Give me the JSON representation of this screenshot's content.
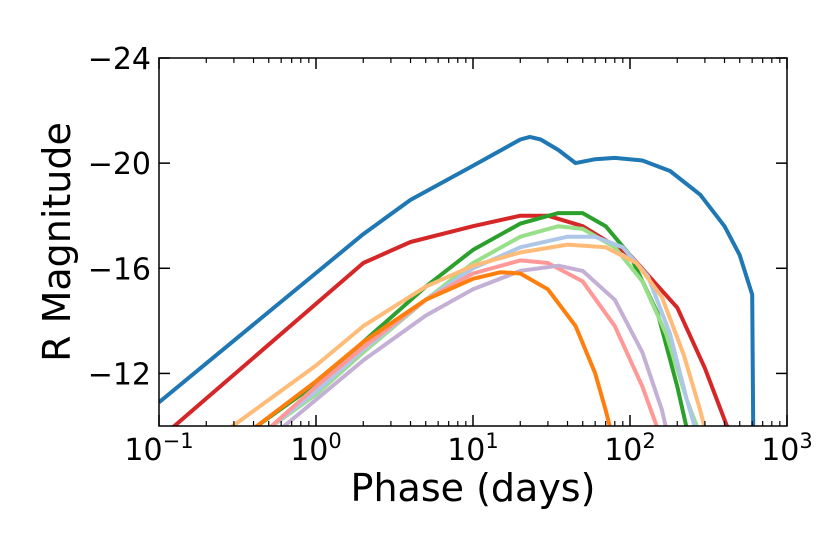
{
  "chart_data": {
    "type": "line",
    "title": "",
    "xlabel": "Phase (days)",
    "ylabel": "R Magnitude",
    "xscale": "log",
    "xlim": [
      0.1,
      1000
    ],
    "ylim": [
      -10,
      -24
    ],
    "y_inverted": true,
    "grid": false,
    "legend": "none",
    "x_ticks": [
      {
        "value": 0.1,
        "base": "10",
        "exp": "−1"
      },
      {
        "value": 1,
        "base": "10",
        "exp": "0"
      },
      {
        "value": 10,
        "base": "10",
        "exp": "1"
      },
      {
        "value": 100,
        "base": "10",
        "exp": "2"
      },
      {
        "value": 1000,
        "base": "10",
        "exp": "3"
      }
    ],
    "y_ticks": [
      {
        "value": -24,
        "label": "−24"
      },
      {
        "value": -20,
        "label": "−20"
      },
      {
        "value": -16,
        "label": "−16"
      },
      {
        "value": -12,
        "label": "−12"
      }
    ],
    "series": [
      {
        "name": "blue",
        "color": "#1f77b4",
        "points": [
          [
            0.1,
            -10.9
          ],
          [
            2,
            -17.3
          ],
          [
            4,
            -18.6
          ],
          [
            10,
            -19.9
          ],
          [
            20,
            -20.9
          ],
          [
            23,
            -21.0
          ],
          [
            27,
            -20.9
          ],
          [
            35,
            -20.5
          ],
          [
            45,
            -20.0
          ],
          [
            60,
            -20.15
          ],
          [
            80,
            -20.2
          ],
          [
            120,
            -20.1
          ],
          [
            180,
            -19.7
          ],
          [
            280,
            -18.8
          ],
          [
            400,
            -17.6
          ],
          [
            500,
            -16.5
          ],
          [
            600,
            -15.0
          ],
          [
            610,
            -9.5
          ]
        ]
      },
      {
        "name": "red",
        "color": "#d62728",
        "points": [
          [
            0.12,
            -9.9
          ],
          [
            2,
            -16.2
          ],
          [
            4,
            -17.0
          ],
          [
            10,
            -17.6
          ],
          [
            20,
            -18.0
          ],
          [
            30,
            -18.0
          ],
          [
            50,
            -17.6
          ],
          [
            100,
            -16.5
          ],
          [
            200,
            -14.5
          ],
          [
            300,
            -12.2
          ],
          [
            420,
            -9.9
          ]
        ]
      },
      {
        "name": "green",
        "color": "#2ca02c",
        "points": [
          [
            0.4,
            -9.9
          ],
          [
            1,
            -11.6
          ],
          [
            2,
            -13.2
          ],
          [
            5,
            -15.3
          ],
          [
            10,
            -16.7
          ],
          [
            20,
            -17.7
          ],
          [
            35,
            -18.1
          ],
          [
            50,
            -18.1
          ],
          [
            70,
            -17.6
          ],
          [
            100,
            -16.5
          ],
          [
            150,
            -14.3
          ],
          [
            200,
            -11.5
          ],
          [
            230,
            -9.9
          ]
        ]
      },
      {
        "name": "light-green",
        "color": "#98df8a",
        "points": [
          [
            0.5,
            -9.9
          ],
          [
            1,
            -11.2
          ],
          [
            2,
            -12.8
          ],
          [
            5,
            -14.8
          ],
          [
            10,
            -16.2
          ],
          [
            20,
            -17.2
          ],
          [
            35,
            -17.6
          ],
          [
            50,
            -17.5
          ],
          [
            80,
            -16.8
          ],
          [
            120,
            -15.5
          ],
          [
            170,
            -13.5
          ],
          [
            230,
            -11.0
          ],
          [
            270,
            -9.9
          ]
        ]
      },
      {
        "name": "light-blue",
        "color": "#aec7e8",
        "points": [
          [
            0.5,
            -9.9
          ],
          [
            1,
            -11.3
          ],
          [
            2,
            -12.9
          ],
          [
            5,
            -14.8
          ],
          [
            10,
            -16.0
          ],
          [
            20,
            -16.8
          ],
          [
            40,
            -17.2
          ],
          [
            60,
            -17.2
          ],
          [
            90,
            -16.8
          ],
          [
            130,
            -15.7
          ],
          [
            180,
            -13.5
          ],
          [
            230,
            -11.0
          ],
          [
            260,
            -9.9
          ]
        ]
      },
      {
        "name": "peach",
        "color": "#ffbb78",
        "points": [
          [
            0.28,
            -9.9
          ],
          [
            1,
            -12.3
          ],
          [
            2,
            -13.8
          ],
          [
            5,
            -15.3
          ],
          [
            10,
            -16.1
          ],
          [
            20,
            -16.6
          ],
          [
            40,
            -16.9
          ],
          [
            70,
            -16.8
          ],
          [
            110,
            -16.2
          ],
          [
            160,
            -14.9
          ],
          [
            220,
            -12.7
          ],
          [
            280,
            -10.6
          ],
          [
            300,
            -9.9
          ]
        ]
      },
      {
        "name": "pink",
        "color": "#ff9896",
        "points": [
          [
            0.5,
            -9.9
          ],
          [
            1,
            -11.5
          ],
          [
            2,
            -13.0
          ],
          [
            5,
            -14.8
          ],
          [
            10,
            -15.8
          ],
          [
            20,
            -16.3
          ],
          [
            30,
            -16.2
          ],
          [
            50,
            -15.5
          ],
          [
            80,
            -13.8
          ],
          [
            120,
            -11.5
          ],
          [
            150,
            -9.9
          ]
        ]
      },
      {
        "name": "lavender",
        "color": "#c5b0d5",
        "points": [
          [
            0.6,
            -9.9
          ],
          [
            1,
            -11.0
          ],
          [
            2,
            -12.5
          ],
          [
            5,
            -14.2
          ],
          [
            10,
            -15.2
          ],
          [
            20,
            -15.9
          ],
          [
            35,
            -16.1
          ],
          [
            50,
            -15.9
          ],
          [
            80,
            -14.8
          ],
          [
            120,
            -12.8
          ],
          [
            160,
            -10.6
          ],
          [
            170,
            -9.9
          ]
        ]
      },
      {
        "name": "orange",
        "color": "#ff7f0e",
        "points": [
          [
            0.4,
            -9.9
          ],
          [
            1,
            -11.7
          ],
          [
            2,
            -13.2
          ],
          [
            5,
            -14.8
          ],
          [
            10,
            -15.6
          ],
          [
            15,
            -15.85
          ],
          [
            20,
            -15.8
          ],
          [
            30,
            -15.2
          ],
          [
            45,
            -13.8
          ],
          [
            60,
            -12.0
          ],
          [
            70,
            -10.6
          ],
          [
            75,
            -9.9
          ]
        ]
      }
    ]
  }
}
